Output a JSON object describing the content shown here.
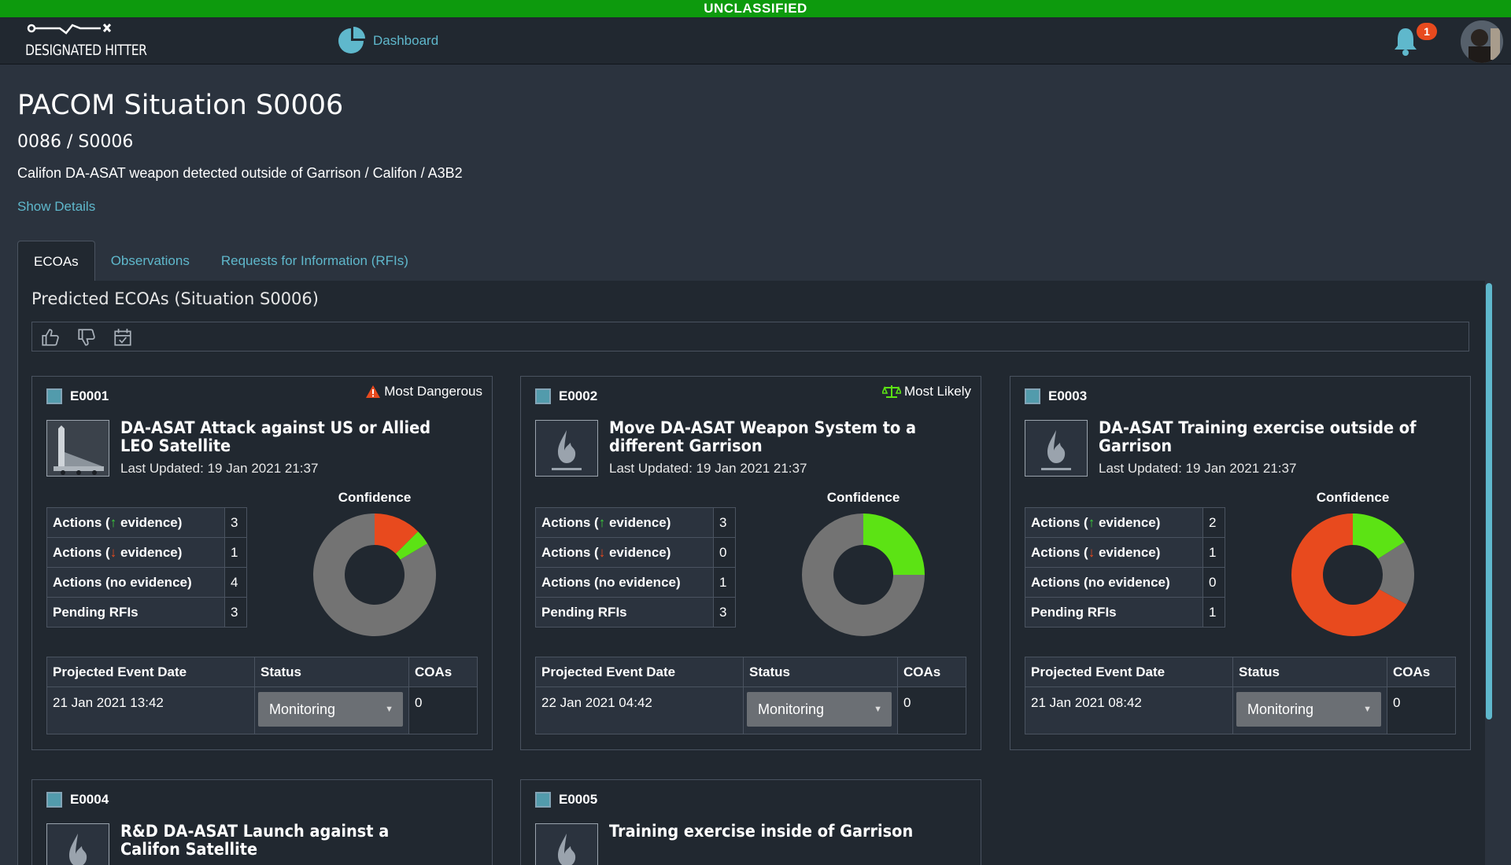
{
  "classification": "UNCLASSIFIED",
  "colors": {
    "banner": "#0d9a0d",
    "accent": "#5fb8cc",
    "danger": "#e84a1e",
    "good": "#5ce314",
    "neutral": "#737373"
  },
  "header": {
    "logo_text": "DESIGNATED HITTER",
    "nav_dashboard": "Dashboard",
    "notification_count": "1"
  },
  "page": {
    "title": "PACOM Situation S0006",
    "subtitle": "0086 / S0006",
    "description": "Califon DA-ASAT weapon detected outside of Garrison / Califon / A3B2",
    "show_details": "Show Details"
  },
  "tabs": [
    {
      "label": "ECOAs",
      "active": true
    },
    {
      "label": "Observations",
      "active": false
    },
    {
      "label": "Requests for Information (RFIs)",
      "active": false
    }
  ],
  "panel": {
    "title": "Predicted ECOAs (Situation S0006)",
    "toolbar_icons": [
      "thumbs-up-icon",
      "thumbs-down-icon",
      "calendar-check-icon"
    ]
  },
  "table_labels": {
    "actions_pos_pre": "Actions (",
    "actions_pos_post": " evidence)",
    "actions_neg_pre": "Actions (",
    "actions_neg_post": " evidence)",
    "actions_none": "Actions (no evidence)",
    "pending_rfis": "Pending RFIs",
    "confidence": "Confidence",
    "col_date": "Projected Event Date",
    "col_status": "Status",
    "col_coas": "COAs",
    "updated_prefix": "Last Updated: "
  },
  "cards": [
    {
      "id": "E0001",
      "tag": "Most Dangerous",
      "tag_icon": "warning-icon",
      "title": "DA-ASAT Attack against US or Allied LEO Satellite",
      "updated": "19 Jan 2021 21:37",
      "actions_pos": "3",
      "actions_neg": "1",
      "actions_none": "4",
      "pending_rfis": "3",
      "confidence": {
        "red": 0.125,
        "green": 0.04,
        "gray": 0.835
      },
      "event_date": "21 Jan 2021 13:42",
      "status": "Monitoring",
      "coas": "0"
    },
    {
      "id": "E0002",
      "tag": "Most Likely",
      "tag_icon": "balance-scale-icon",
      "title": "Move DA-ASAT Weapon System to a different Garrison",
      "updated": "19 Jan 2021 21:37",
      "actions_pos": "3",
      "actions_neg": "0",
      "actions_none": "1",
      "pending_rfis": "3",
      "confidence": {
        "red": 0.0,
        "green": 0.25,
        "gray": 0.75
      },
      "event_date": "22 Jan 2021 04:42",
      "status": "Monitoring",
      "coas": "0"
    },
    {
      "id": "E0003",
      "tag": "",
      "tag_icon": "",
      "title": "DA-ASAT Training exercise outside of Garrison",
      "updated": "19 Jan 2021 21:37",
      "actions_pos": "2",
      "actions_neg": "1",
      "actions_none": "0",
      "pending_rfis": "1",
      "confidence": {
        "green": 0.16,
        "gray": 0.17,
        "red": 0.67
      },
      "event_date": "21 Jan 2021 08:42",
      "status": "Monitoring",
      "coas": "0"
    },
    {
      "id": "E0004",
      "title": "R&D DA-ASAT Launch against a Califon Satellite"
    },
    {
      "id": "E0005",
      "title": "Training exercise inside of Garrison"
    }
  ]
}
